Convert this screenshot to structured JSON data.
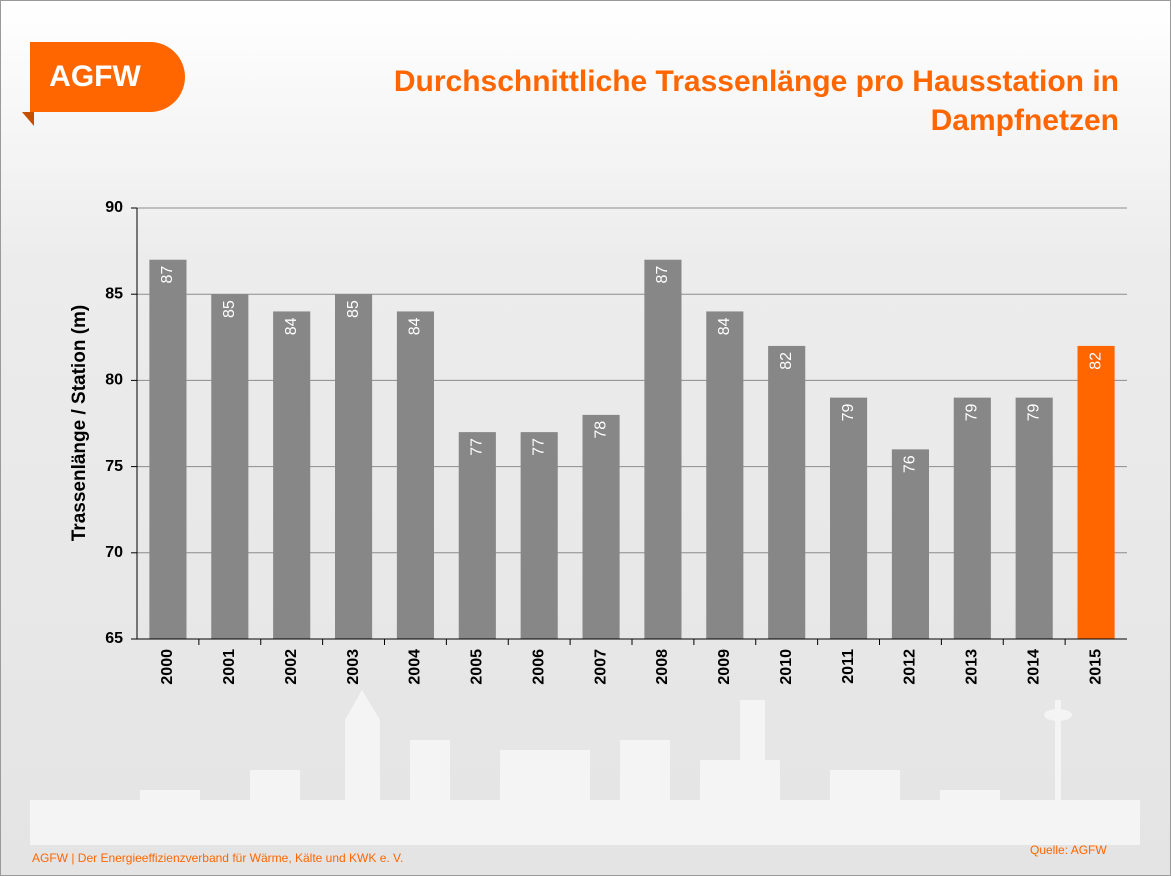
{
  "logo": "AGFW",
  "footer": "AGFW | Der Energieeffizienzverband für Wärme, Kälte und KWK e. V.",
  "source": "Quelle: AGFW",
  "chart_data": {
    "type": "bar",
    "title": "Durchschnittliche Trassenlänge pro Hausstation in Dampfnetzen",
    "y_label": "Trassenlänge / Station (m)",
    "categories": [
      "2000",
      "2001",
      "2002",
      "2003",
      "2004",
      "2005",
      "2006",
      "2007",
      "2008",
      "2009",
      "2010",
      "2011",
      "2012",
      "2013",
      "2014",
      "2015"
    ],
    "values": [
      87,
      85,
      84,
      85,
      84,
      77,
      77,
      78,
      87,
      84,
      82,
      79,
      76,
      79,
      79,
      82
    ],
    "colors": [
      "#878787",
      "#878787",
      "#878787",
      "#878787",
      "#878787",
      "#878787",
      "#878787",
      "#878787",
      "#878787",
      "#878787",
      "#878787",
      "#878787",
      "#878787",
      "#878787",
      "#878787",
      "#ff6600"
    ],
    "ylim": [
      65,
      90
    ],
    "yticks": [
      65,
      70,
      75,
      80,
      85,
      90
    ],
    "grid": true
  }
}
